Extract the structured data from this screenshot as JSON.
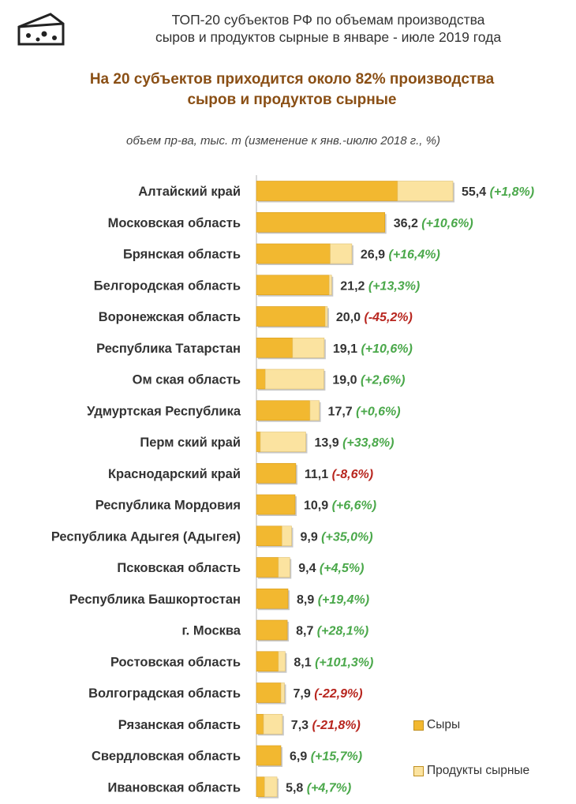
{
  "header": {
    "title_line1": "ТОП-20 субъектов РФ по объемам производства",
    "title_line2": "сыров и продуктов сырные в январе - июле 2019 года",
    "subtitle_line1": "На 20 субъектов приходится около 82% производства",
    "subtitle_line2": "сыров и продуктов  сырные",
    "units_note": "объем пр-ва, тыс. т  (изменение к янв.-июлю 2018 г., %)"
  },
  "legend": {
    "cheese": "Сыры",
    "products": "Продукты сырные"
  },
  "colors": {
    "cheese": "#f2b830",
    "products": "#fbe3a0",
    "positive": "#4aa84a",
    "negative": "#b8261f",
    "label": "#333333"
  },
  "icons": {
    "logo": "cheese-icon"
  },
  "chart_data": {
    "type": "bar",
    "orientation": "horizontal",
    "stacked": true,
    "categories": [
      "Алтайский край",
      "Московская область",
      "Брянская область",
      "Белгородская область",
      "Воронежская область",
      "Республика Татарстан",
      "Ом ская область",
      "Удмуртская Республика",
      "Перм ский край",
      "Краснодарский край",
      "Республика Мордовия",
      "Республика Адыгея (Адыгея)",
      "Псковская область",
      "Республика Башкортостан",
      "г. Москва",
      "Ростовская область",
      "Волгоградская область",
      "Рязанская область",
      "Свердловская область",
      "Ивановская область"
    ],
    "series": [
      {
        "name": "Сыры",
        "values": [
          39.8,
          36.2,
          20.8,
          20.5,
          19.4,
          10.2,
          2.5,
          15.1,
          1.1,
          11.1,
          10.9,
          7.2,
          6.2,
          8.9,
          8.7,
          6.2,
          6.9,
          2.0,
          6.9,
          2.3
        ]
      },
      {
        "name": "Продукты сырные",
        "values": [
          15.6,
          0.0,
          6.1,
          0.7,
          0.6,
          8.9,
          16.5,
          2.6,
          12.8,
          0.0,
          0.0,
          2.7,
          3.2,
          0.0,
          0.0,
          1.9,
          1.0,
          5.3,
          0.0,
          3.5
        ]
      }
    ],
    "totals": [
      "55,4",
      "36,2",
      "26,9",
      "21,2",
      "20,0",
      "19,1",
      "19,0",
      "17,7",
      "13,9",
      "11,1",
      "10,9",
      "9,9",
      "9,4",
      "8,9",
      "8,7",
      "8,1",
      "7,9",
      "7,3",
      "6,9",
      "5,8"
    ],
    "changes": [
      "(+1,8%)",
      "(+10,6%)",
      "(+16,4%)",
      "(+13,3%)",
      "(-45,2%)",
      "(+10,6%)",
      "(+2,6%)",
      "(+0,6%)",
      "(+33,8%)",
      "(-8,6%)",
      "(+6,6%)",
      "(+35,0%)",
      "(+4,5%)",
      "(+19,4%)",
      "(+28,1%)",
      "(+101,3%)",
      "(-22,9%)",
      "(-21,8%)",
      "(+15,7%)",
      "(+4,7%)"
    ],
    "xlim": [
      0,
      55.4
    ],
    "grid": false,
    "legend_position": "bottom-right"
  }
}
